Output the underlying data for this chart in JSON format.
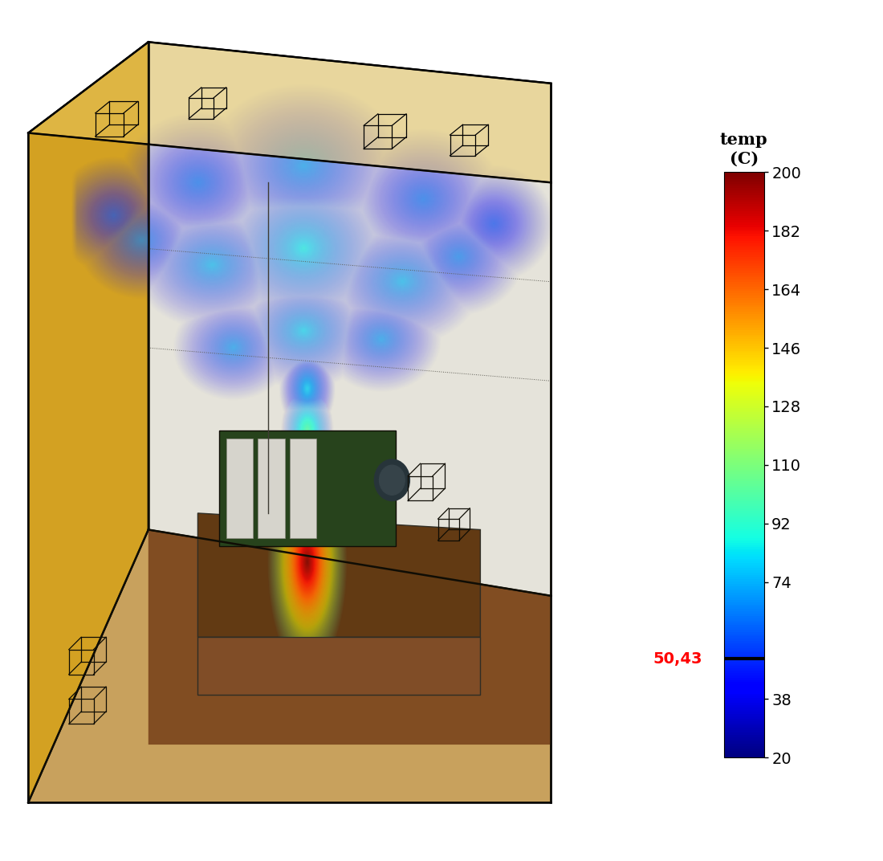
{
  "colorbar_title": "temp\n(C)",
  "colorbar_ticks": [
    200,
    182,
    164,
    146,
    128,
    110,
    92,
    74,
    38,
    20
  ],
  "colorbar_vmin": 20,
  "colorbar_vmax": 200,
  "colorbar_marker_value": 50.43,
  "colorbar_marker_label": "50,43",
  "colorbar_marker_color": "red",
  "background_color": "#ffffff",
  "colormap": "jet",
  "fig_width": 11.0,
  "fig_height": 10.72
}
